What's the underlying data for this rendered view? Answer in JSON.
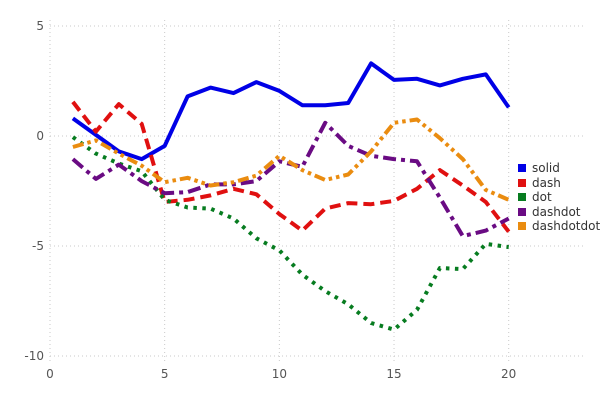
{
  "chart_data": {
    "type": "line",
    "title": "",
    "xlabel": "",
    "ylabel": "",
    "xlim": [
      0,
      20
    ],
    "ylim": [
      -10,
      5
    ],
    "x_ticks": [
      0,
      5,
      10,
      15,
      20
    ],
    "y_ticks": [
      5,
      0,
      -5,
      -10
    ],
    "grid": "dotted",
    "grid_color": "#c9c9c9",
    "tick_label_color": "#555555",
    "legend_position": "right",
    "x": [
      1,
      2,
      3,
      4,
      5,
      6,
      7,
      8,
      9,
      10,
      11,
      12,
      13,
      14,
      15,
      16,
      17,
      18,
      19,
      20
    ],
    "series": [
      {
        "name": "solid",
        "color": "#0000e6",
        "dash": "solid",
        "values": [
          0.8,
          0.05,
          -0.7,
          -1.05,
          -0.45,
          1.8,
          2.2,
          1.95,
          2.45,
          2.05,
          1.4,
          1.4,
          1.5,
          3.3,
          2.55,
          2.6,
          2.3,
          2.6,
          2.8,
          1.3
        ]
      },
      {
        "name": "dash",
        "color": "#e01010",
        "dash": "dash",
        "values": [
          1.55,
          0.2,
          1.45,
          0.55,
          -3.0,
          -2.9,
          -2.7,
          -2.4,
          -2.65,
          -3.55,
          -4.3,
          -3.3,
          -3.05,
          -3.1,
          -2.95,
          -2.4,
          -1.55,
          -2.25,
          -3.0,
          -4.35
        ]
      },
      {
        "name": "dot",
        "color": "#077c20",
        "dash": "dot",
        "values": [
          -0.05,
          -0.8,
          -1.25,
          -1.6,
          -2.9,
          -3.25,
          -3.3,
          -3.75,
          -4.65,
          -5.2,
          -6.3,
          -7.05,
          -7.65,
          -8.5,
          -8.8,
          -7.9,
          -6.0,
          -6.05,
          -4.9,
          -5.05
        ]
      },
      {
        "name": "dashdot",
        "color": "#6a0b83",
        "dash": "dashdot",
        "values": [
          -1.05,
          -1.95,
          -1.3,
          -2.05,
          -2.6,
          -2.55,
          -2.2,
          -2.2,
          -2.05,
          -1.15,
          -1.4,
          0.6,
          -0.45,
          -0.9,
          -1.05,
          -1.15,
          -2.8,
          -4.55,
          -4.3,
          -3.75
        ]
      },
      {
        "name": "dashdotdot",
        "color": "#ea8c10",
        "dash": "dashdotdot",
        "values": [
          -0.5,
          -0.2,
          -0.8,
          -1.35,
          -2.1,
          -1.9,
          -2.25,
          -2.1,
          -1.8,
          -0.9,
          -1.55,
          -2.0,
          -1.75,
          -0.7,
          0.6,
          0.75,
          -0.1,
          -1.05,
          -2.45,
          -2.9
        ]
      }
    ]
  }
}
